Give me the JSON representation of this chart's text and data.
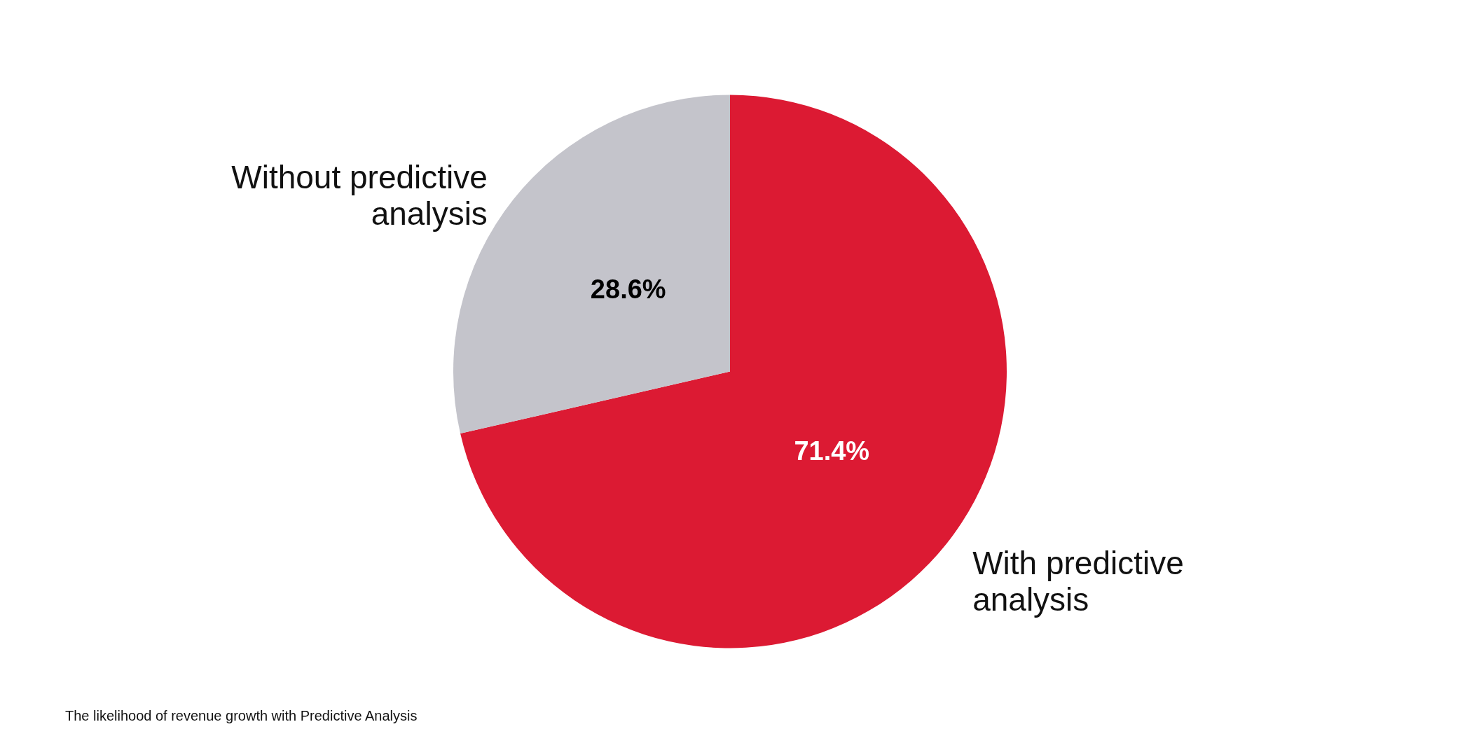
{
  "chart_data": {
    "type": "pie",
    "categories": [
      "With predictive analysis",
      "Without predictive analysis"
    ],
    "values": [
      71.4,
      28.6
    ],
    "colors": [
      "#dc1a33",
      "#c4c4cb"
    ],
    "value_labels": [
      "71.4%",
      "28.6%"
    ],
    "annotations": [
      "The likelihood of revenue growth with Predictive Analysis"
    ]
  }
}
